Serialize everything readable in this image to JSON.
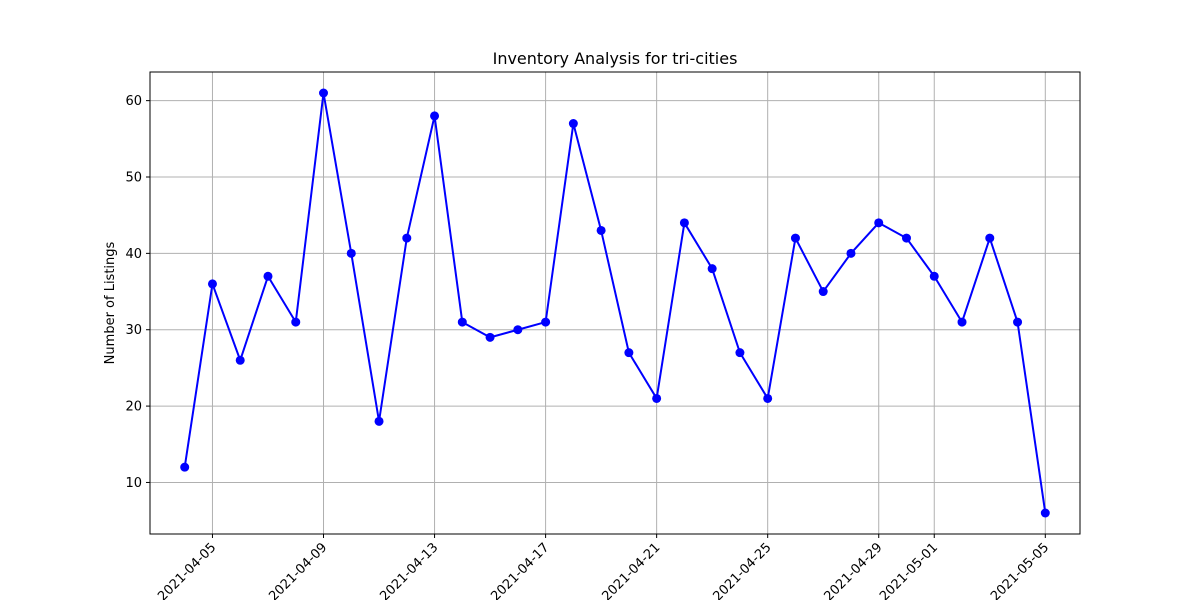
{
  "chart_data": {
    "type": "line",
    "title": "Inventory Analysis for tri-cities",
    "xlabel": "",
    "ylabel": "Number of Listings",
    "grid": true,
    "color": "#0000ff",
    "marker": "circle",
    "xlim": [
      "2021-04-02.75",
      "2021-05-06.25"
    ],
    "ylim": [
      3.25,
      63.75
    ],
    "xticks": [
      "2021-04-05",
      "2021-04-09",
      "2021-04-13",
      "2021-04-17",
      "2021-04-21",
      "2021-04-25",
      "2021-04-29",
      "2021-05-01",
      "2021-05-05"
    ],
    "yticks": [
      10,
      20,
      30,
      40,
      50,
      60
    ],
    "series": [
      {
        "x": [
          "2021-04-04",
          "2021-04-05",
          "2021-04-06",
          "2021-04-07",
          "2021-04-08",
          "2021-04-09",
          "2021-04-10",
          "2021-04-11",
          "2021-04-12",
          "2021-04-13",
          "2021-04-14",
          "2021-04-15",
          "2021-04-16",
          "2021-04-17",
          "2021-04-18",
          "2021-04-19",
          "2021-04-20",
          "2021-04-21",
          "2021-04-22",
          "2021-04-23",
          "2021-04-24",
          "2021-04-25",
          "2021-04-26",
          "2021-04-27",
          "2021-04-28",
          "2021-04-29",
          "2021-04-30",
          "2021-05-01",
          "2021-05-02",
          "2021-05-03",
          "2021-05-04",
          "2021-05-05"
        ],
        "values": [
          12,
          36,
          26,
          37,
          31,
          61,
          40,
          18,
          42,
          58,
          31,
          29,
          30,
          31,
          57,
          43,
          27,
          21,
          44,
          38,
          27,
          21,
          42,
          35,
          40,
          44,
          42,
          37,
          31,
          42,
          31,
          6
        ]
      }
    ]
  }
}
